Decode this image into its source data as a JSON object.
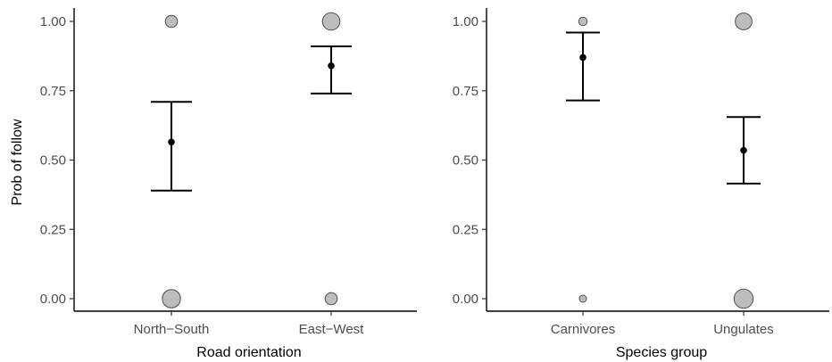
{
  "y_axis_title": "Prob of follow",
  "chart_data": [
    {
      "type": "scatter",
      "xlabel": "Road orientation",
      "ylabel": "Prob of follow",
      "categories": [
        "North−South",
        "East−West"
      ],
      "ylim": [
        -0.05,
        1.05
      ],
      "yticks": [
        "0.00",
        "0.25",
        "0.50",
        "0.75",
        "1.00"
      ],
      "grid": false,
      "means": [
        0.565,
        0.84
      ],
      "ci_lower": [
        0.39,
        0.74
      ],
      "ci_upper": [
        0.71,
        0.91
      ],
      "observations": [
        {
          "category": "North−South",
          "y": 1.0,
          "relative_count": 0.45
        },
        {
          "category": "North−South",
          "y": 0.0,
          "relative_count": 0.85
        },
        {
          "category": "East−West",
          "y": 1.0,
          "relative_count": 0.8
        },
        {
          "category": "East−West",
          "y": 0.0,
          "relative_count": 0.45
        }
      ]
    },
    {
      "type": "scatter",
      "xlabel": "Species group",
      "ylabel": "",
      "categories": [
        "Carnivores",
        "Ungulates"
      ],
      "ylim": [
        -0.05,
        1.05
      ],
      "yticks": [
        "0.00",
        "0.25",
        "0.50",
        "0.75",
        "1.00"
      ],
      "grid": false,
      "means": [
        0.87,
        0.535
      ],
      "ci_lower": [
        0.715,
        0.415
      ],
      "ci_upper": [
        0.96,
        0.655
      ],
      "observations": [
        {
          "category": "Carnivores",
          "y": 1.0,
          "relative_count": 0.2
        },
        {
          "category": "Carnivores",
          "y": 0.0,
          "relative_count": 0.12
        },
        {
          "category": "Ungulates",
          "y": 1.0,
          "relative_count": 0.75
        },
        {
          "category": "Ungulates",
          "y": 0.0,
          "relative_count": 0.9
        }
      ]
    }
  ]
}
